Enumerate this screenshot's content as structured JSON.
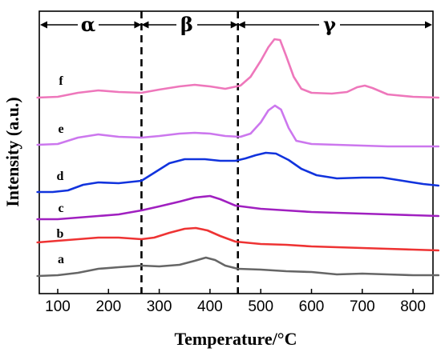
{
  "chart_data": {
    "type": "line",
    "xlabel": "Temperature/°C",
    "ylabel": "Intensity (a.u.)",
    "xlim": [
      60,
      850
    ],
    "xticks": [
      100,
      200,
      300,
      400,
      500,
      600,
      700,
      800
    ],
    "yticks_visible": false,
    "grid": false,
    "legend": "none",
    "regions": [
      {
        "label": "α",
        "from": 60,
        "to": 265
      },
      {
        "label": "β",
        "from": 265,
        "to": 455
      },
      {
        "label": "γ",
        "from": 455,
        "to": 850
      }
    ],
    "boundaries": [
      265,
      455
    ],
    "series": [
      {
        "label": "a",
        "color": "#666666",
        "points": [
          [
            60,
            345
          ],
          [
            100,
            344
          ],
          [
            140,
            341
          ],
          [
            180,
            336
          ],
          [
            220,
            334
          ],
          [
            265,
            332
          ],
          [
            300,
            333
          ],
          [
            340,
            331
          ],
          [
            370,
            326
          ],
          [
            392,
            322
          ],
          [
            410,
            325
          ],
          [
            430,
            332
          ],
          [
            455,
            336
          ],
          [
            500,
            337
          ],
          [
            550,
            339
          ],
          [
            600,
            340
          ],
          [
            650,
            343
          ],
          [
            700,
            342
          ],
          [
            750,
            343
          ],
          [
            800,
            344
          ],
          [
            850,
            344
          ]
        ]
      },
      {
        "label": "b",
        "color": "#ee3333",
        "points": [
          [
            60,
            303
          ],
          [
            100,
            301
          ],
          [
            140,
            299
          ],
          [
            180,
            297
          ],
          [
            220,
            297
          ],
          [
            265,
            299
          ],
          [
            290,
            297
          ],
          [
            320,
            291
          ],
          [
            350,
            286
          ],
          [
            372,
            285
          ],
          [
            395,
            288
          ],
          [
            420,
            295
          ],
          [
            450,
            302
          ],
          [
            500,
            305
          ],
          [
            550,
            306
          ],
          [
            600,
            308
          ],
          [
            650,
            309
          ],
          [
            700,
            310
          ],
          [
            750,
            311
          ],
          [
            800,
            312
          ],
          [
            850,
            313
          ]
        ]
      },
      {
        "label": "c",
        "color": "#a020c0",
        "points": [
          [
            60,
            274
          ],
          [
            100,
            274
          ],
          [
            140,
            272
          ],
          [
            180,
            270
          ],
          [
            220,
            268
          ],
          [
            265,
            263
          ],
          [
            300,
            258
          ],
          [
            340,
            252
          ],
          [
            370,
            247
          ],
          [
            400,
            245
          ],
          [
            420,
            249
          ],
          [
            450,
            257
          ],
          [
            500,
            261
          ],
          [
            550,
            263
          ],
          [
            600,
            265
          ],
          [
            650,
            266
          ],
          [
            700,
            267
          ],
          [
            750,
            268
          ],
          [
            800,
            269
          ],
          [
            850,
            270
          ]
        ]
      },
      {
        "label": "d",
        "color": "#1133dd",
        "points": [
          [
            60,
            240
          ],
          [
            90,
            240
          ],
          [
            120,
            238
          ],
          [
            150,
            231
          ],
          [
            180,
            228
          ],
          [
            220,
            229
          ],
          [
            265,
            226
          ],
          [
            290,
            216
          ],
          [
            320,
            204
          ],
          [
            350,
            199
          ],
          [
            390,
            199
          ],
          [
            420,
            201
          ],
          [
            450,
            201
          ],
          [
            470,
            198
          ],
          [
            490,
            194
          ],
          [
            510,
            191
          ],
          [
            530,
            192
          ],
          [
            555,
            200
          ],
          [
            580,
            211
          ],
          [
            610,
            219
          ],
          [
            650,
            223
          ],
          [
            700,
            222
          ],
          [
            740,
            222
          ],
          [
            780,
            226
          ],
          [
            820,
            230
          ],
          [
            850,
            232
          ]
        ]
      },
      {
        "label": "e",
        "color": "#cc77ee",
        "points": [
          [
            60,
            181
          ],
          [
            100,
            180
          ],
          [
            140,
            172
          ],
          [
            180,
            168
          ],
          [
            220,
            171
          ],
          [
            265,
            172
          ],
          [
            300,
            170
          ],
          [
            340,
            167
          ],
          [
            370,
            166
          ],
          [
            400,
            167
          ],
          [
            430,
            170
          ],
          [
            460,
            171
          ],
          [
            480,
            167
          ],
          [
            500,
            153
          ],
          [
            515,
            138
          ],
          [
            528,
            132
          ],
          [
            540,
            137
          ],
          [
            555,
            160
          ],
          [
            570,
            176
          ],
          [
            600,
            180
          ],
          [
            650,
            181
          ],
          [
            700,
            182
          ],
          [
            750,
            183
          ],
          [
            800,
            183
          ],
          [
            850,
            183
          ]
        ]
      },
      {
        "label": "f",
        "color": "#ee77bb",
        "points": [
          [
            60,
            122
          ],
          [
            100,
            121
          ],
          [
            140,
            116
          ],
          [
            180,
            113
          ],
          [
            220,
            115
          ],
          [
            265,
            116
          ],
          [
            300,
            112
          ],
          [
            340,
            108
          ],
          [
            370,
            106
          ],
          [
            400,
            108
          ],
          [
            430,
            111
          ],
          [
            460,
            107
          ],
          [
            480,
            96
          ],
          [
            500,
            76
          ],
          [
            515,
            59
          ],
          [
            527,
            49
          ],
          [
            538,
            50
          ],
          [
            550,
            70
          ],
          [
            565,
            96
          ],
          [
            580,
            111
          ],
          [
            600,
            116
          ],
          [
            640,
            117
          ],
          [
            670,
            115
          ],
          [
            690,
            109
          ],
          [
            705,
            107
          ],
          [
            720,
            110
          ],
          [
            750,
            118
          ],
          [
            800,
            121
          ],
          [
            850,
            122
          ]
        ]
      }
    ]
  }
}
